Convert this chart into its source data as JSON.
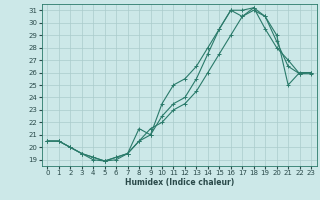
{
  "xlabel": "Humidex (Indice chaleur)",
  "ylabel": "",
  "background_color": "#cce8e8",
  "grid_color": "#aacccc",
  "line_color": "#2a7a6a",
  "xlim": [
    -0.5,
    23.5
  ],
  "ylim": [
    18.5,
    31.5
  ],
  "xticks": [
    0,
    1,
    2,
    3,
    4,
    5,
    6,
    7,
    8,
    9,
    10,
    11,
    12,
    13,
    14,
    15,
    16,
    17,
    18,
    19,
    20,
    21,
    22,
    23
  ],
  "yticks": [
    19,
    20,
    21,
    22,
    23,
    24,
    25,
    26,
    27,
    28,
    29,
    30,
    31
  ],
  "line1": {
    "x": [
      0,
      1,
      2,
      3,
      4,
      5,
      6,
      7,
      8,
      9,
      10,
      11,
      12,
      13,
      14,
      15,
      16,
      17,
      18,
      19,
      20,
      21,
      22,
      23
    ],
    "y": [
      20.5,
      20.5,
      20.0,
      19.5,
      19.2,
      18.9,
      19.2,
      19.5,
      20.5,
      21.0,
      22.5,
      23.5,
      24.0,
      25.5,
      27.5,
      29.5,
      31.0,
      31.0,
      31.2,
      30.5,
      28.5,
      26.5,
      25.9,
      25.9
    ]
  },
  "line2": {
    "x": [
      0,
      1,
      2,
      3,
      4,
      5,
      6,
      7,
      8,
      9,
      10,
      11,
      12,
      13,
      14,
      15,
      16,
      17,
      18,
      19,
      20,
      21,
      22,
      23
    ],
    "y": [
      20.5,
      20.5,
      20.0,
      19.5,
      19.0,
      18.9,
      19.0,
      19.5,
      21.5,
      21.0,
      23.5,
      25.0,
      25.5,
      26.5,
      28.0,
      29.5,
      31.0,
      30.5,
      31.2,
      29.5,
      28.0,
      27.0,
      25.9,
      26.0
    ]
  },
  "line3": {
    "x": [
      0,
      1,
      2,
      3,
      4,
      5,
      6,
      7,
      8,
      9,
      10,
      11,
      12,
      13,
      14,
      15,
      16,
      17,
      18,
      19,
      20,
      21,
      22,
      23
    ],
    "y": [
      20.5,
      20.5,
      20.0,
      19.5,
      19.2,
      18.9,
      19.2,
      19.5,
      20.5,
      21.5,
      22.0,
      23.0,
      23.5,
      24.5,
      26.0,
      27.5,
      29.0,
      30.5,
      31.0,
      30.5,
      29.0,
      25.0,
      26.0,
      26.0
    ]
  }
}
